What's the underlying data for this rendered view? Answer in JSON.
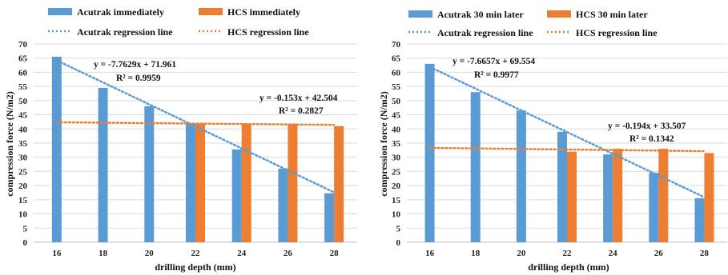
{
  "colors": {
    "acutrak": "#5B9BD5",
    "hcs": "#ED7D31",
    "grid": "#d9d9d9",
    "axis": "#bfbfbf"
  },
  "chart_data": [
    {
      "type": "bar",
      "title": "",
      "categories": [
        "16",
        "18",
        "20",
        "22",
        "24",
        "26",
        "28"
      ],
      "xlabel": "drilling depth (mm)",
      "ylabel": "compression force (N/m2)",
      "ylim": [
        0,
        70
      ],
      "yticks": [
        "0",
        "5",
        "10",
        "15",
        "20",
        "25",
        "30",
        "35",
        "40",
        "45",
        "50",
        "55",
        "60",
        "65",
        "70"
      ],
      "grid": true,
      "legend_position": "top",
      "series": [
        {
          "name": "Acutrak immediately",
          "color": "#5B9BD5",
          "values": [
            65.5,
            54.5,
            48,
            41.8,
            32.8,
            26,
            17.3
          ]
        },
        {
          "name": "HCS immediately",
          "color": "#ED7D31",
          "values": [
            null,
            null,
            null,
            41.8,
            41.8,
            41.8,
            41
          ]
        }
      ],
      "trendlines": [
        {
          "name": "Acutrak regression line",
          "color": "#5B9BD5",
          "slope": -7.7629,
          "intercept": 71.961,
          "equation": "y = -7.7629x + 71.961",
          "r2": "R² = 0.9959"
        },
        {
          "name": "HCS regression line",
          "color": "#ED7D31",
          "slope": -0.153,
          "intercept": 42.504,
          "equation": "y = -0.153x + 42.504",
          "r2": "R² = 0.2827"
        }
      ]
    },
    {
      "type": "bar",
      "title": "",
      "categories": [
        "16",
        "18",
        "20",
        "22",
        "24",
        "26",
        "28"
      ],
      "xlabel": "drilling depth (mm)",
      "ylabel": "compression force (N/m2)",
      "ylim": [
        0,
        70
      ],
      "yticks": [
        "0",
        "5",
        "10",
        "15",
        "20",
        "25",
        "30",
        "35",
        "40",
        "45",
        "50",
        "55",
        "60",
        "65",
        "70"
      ],
      "grid": true,
      "legend_position": "top",
      "series": [
        {
          "name": "Acutrak 30 min later",
          "color": "#5B9BD5",
          "values": [
            63,
            53,
            46.5,
            39,
            31,
            24.5,
            15.5
          ]
        },
        {
          "name": "HCS 30 min later",
          "color": "#ED7D31",
          "values": [
            null,
            null,
            null,
            32,
            33,
            33,
            31.5
          ]
        }
      ],
      "trendlines": [
        {
          "name": "Acutrak regression line",
          "color": "#5B9BD5",
          "slope": -7.6657,
          "intercept": 69.554,
          "equation": "y = -7.6657x + 69.554",
          "r2": "R² = 0.9977"
        },
        {
          "name": "HCS  regression line",
          "color": "#ED7D31",
          "slope": -0.194,
          "intercept": 33.507,
          "equation": "y = -0.194x + 33.507",
          "r2": "R² = 0.1342"
        }
      ]
    }
  ]
}
